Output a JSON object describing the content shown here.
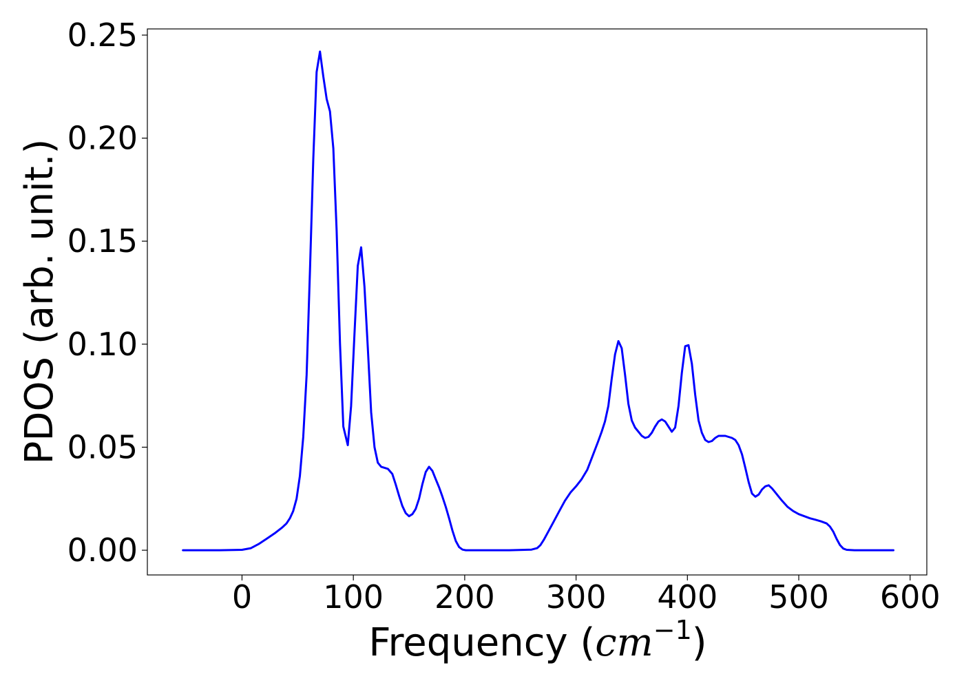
{
  "chart_data": {
    "type": "line",
    "title": "",
    "xlabel_prefix": "Frequency (",
    "xlabel_math": "cm",
    "xlabel_exponent": "−1",
    "xlabel_suffix": ")",
    "ylabel": "PDOS (arb. unit.)",
    "xlim": [
      -85,
      615
    ],
    "ylim": [
      -0.012,
      0.253
    ],
    "xticks": [
      0,
      100,
      200,
      300,
      400,
      500,
      600
    ],
    "xtick_labels": [
      "0",
      "100",
      "200",
      "300",
      "400",
      "500",
      "600"
    ],
    "yticks": [
      0.0,
      0.05,
      0.1,
      0.15,
      0.2,
      0.25
    ],
    "ytick_labels": [
      "0.00",
      "0.05",
      "0.10",
      "0.15",
      "0.20",
      "0.25"
    ],
    "grid": false,
    "legend": false,
    "series": [
      {
        "color": "#0000ff",
        "x": [
          -53,
          -40,
          -20,
          0,
          8,
          15,
          22,
          30,
          36,
          40,
          43,
          46,
          49,
          52,
          55,
          58,
          61,
          64,
          67,
          70,
          73,
          76,
          79,
          82,
          85,
          88,
          91,
          95,
          98,
          101,
          104,
          107,
          110,
          113,
          116,
          119,
          122,
          125,
          128,
          131,
          135,
          138,
          141,
          144,
          147,
          150,
          153,
          156,
          159,
          162,
          165,
          168,
          171,
          174,
          177,
          180,
          183,
          186,
          189,
          192,
          195,
          198,
          201,
          204,
          210,
          220,
          240,
          260,
          265,
          268,
          271,
          275,
          280,
          285,
          290,
          295,
          300,
          305,
          310,
          315,
          320,
          323,
          326,
          329,
          332,
          335,
          338,
          341,
          344,
          347,
          350,
          353,
          356,
          359,
          362,
          365,
          368,
          371,
          374,
          377,
          380,
          383,
          386,
          389,
          392,
          395,
          398,
          401,
          404,
          407,
          410,
          413,
          416,
          419,
          422,
          425,
          428,
          431,
          434,
          437,
          440,
          443,
          446,
          449,
          452,
          455,
          458,
          461,
          464,
          467,
          470,
          473,
          476,
          479,
          482,
          485,
          490,
          495,
          500,
          505,
          510,
          515,
          520,
          525,
          528,
          531,
          534,
          537,
          540,
          543,
          550,
          560,
          585
        ],
        "y": [
          0,
          0,
          0,
          0.0002,
          0.001,
          0.003,
          0.0055,
          0.0085,
          0.011,
          0.013,
          0.0155,
          0.019,
          0.025,
          0.036,
          0.055,
          0.085,
          0.135,
          0.19,
          0.232,
          0.242,
          0.23,
          0.219,
          0.213,
          0.195,
          0.155,
          0.1,
          0.06,
          0.051,
          0.07,
          0.105,
          0.138,
          0.147,
          0.128,
          0.098,
          0.067,
          0.05,
          0.0425,
          0.0405,
          0.04,
          0.0395,
          0.037,
          0.032,
          0.0265,
          0.0215,
          0.018,
          0.0165,
          0.0175,
          0.02,
          0.025,
          0.032,
          0.038,
          0.0405,
          0.0385,
          0.0345,
          0.0305,
          0.026,
          0.021,
          0.0155,
          0.0095,
          0.0045,
          0.0015,
          0.0003,
          0,
          0,
          0,
          0,
          0,
          0.0003,
          0.001,
          0.0025,
          0.005,
          0.009,
          0.014,
          0.019,
          0.024,
          0.028,
          0.031,
          0.0345,
          0.039,
          0.046,
          0.053,
          0.0575,
          0.0625,
          0.07,
          0.083,
          0.095,
          0.1015,
          0.098,
          0.085,
          0.071,
          0.063,
          0.0595,
          0.0575,
          0.0555,
          0.0545,
          0.055,
          0.057,
          0.06,
          0.0625,
          0.0635,
          0.0625,
          0.06,
          0.0575,
          0.0595,
          0.07,
          0.086,
          0.099,
          0.0995,
          0.0905,
          0.0755,
          0.063,
          0.057,
          0.0535,
          0.0525,
          0.053,
          0.0545,
          0.0555,
          0.0555,
          0.0555,
          0.055,
          0.0545,
          0.0535,
          0.051,
          0.0465,
          0.04,
          0.033,
          0.0275,
          0.026,
          0.027,
          0.0295,
          0.031,
          0.0315,
          0.03,
          0.028,
          0.026,
          0.024,
          0.021,
          0.019,
          0.0175,
          0.0165,
          0.0155,
          0.0148,
          0.014,
          0.013,
          0.0115,
          0.009,
          0.0055,
          0.0025,
          0.0008,
          0.0002,
          0,
          0,
          0
        ]
      }
    ]
  }
}
